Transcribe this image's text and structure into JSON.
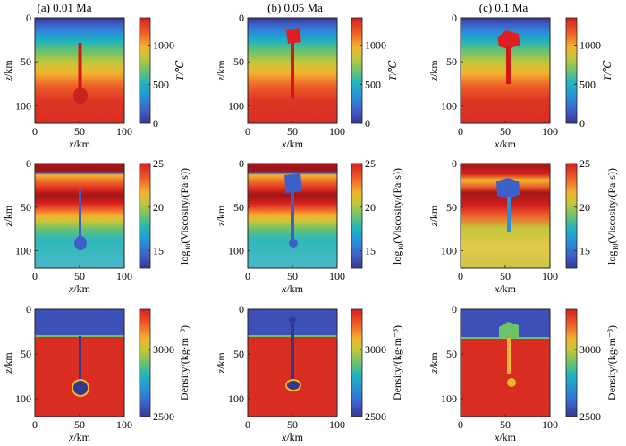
{
  "figure": {
    "columns": [
      {
        "title": "(a) 0.01 Ma"
      },
      {
        "title": "(b) 0.05 Ma"
      },
      {
        "title": "(c) 0.1 Ma"
      }
    ],
    "rows": [
      {
        "colorbar_label": "T/℃",
        "colorbar_ticks": [
          "0",
          "500",
          "1000"
        ],
        "colorbar_range": [
          0,
          1350
        ]
      },
      {
        "colorbar_label_main": "log",
        "colorbar_label_sub": "10",
        "colorbar_label_rest": "(Viscosity/(Pa·s))",
        "colorbar_ticks": [
          "15",
          "20",
          "25"
        ],
        "colorbar_range": [
          13,
          25
        ]
      },
      {
        "colorbar_label": "Density/(kg·m⁻³)",
        "colorbar_ticks": [
          "2500",
          "3000"
        ],
        "colorbar_range": [
          2500,
          3300
        ]
      }
    ],
    "xlabel_italic": "x",
    "xlabel_rest": "/km",
    "ylabel_italic": "z",
    "ylabel_rest": "/km",
    "x_ticks": [
      "0",
      "50",
      "100"
    ],
    "y_ticks": [
      "0",
      "50",
      "100"
    ]
  },
  "chart_data": [
    {
      "type": "heatmap",
      "title": "(a) 0.01 Ma",
      "field": "temperature",
      "unit": "℃",
      "xlim": [
        0,
        100
      ],
      "ylim": [
        0,
        120
      ],
      "clim": [
        0,
        1350
      ],
      "xlabel": "x/km",
      "ylabel": "z/km",
      "conduit_top_z": 30,
      "diapir_center": [
        50,
        90
      ]
    },
    {
      "type": "heatmap",
      "title": "(b) 0.05 Ma",
      "field": "temperature",
      "unit": "℃",
      "xlim": [
        0,
        100
      ],
      "ylim": [
        0,
        120
      ],
      "clim": [
        0,
        1350
      ],
      "xlabel": "x/km",
      "ylabel": "z/km",
      "magma_head_z": 18
    },
    {
      "type": "heatmap",
      "title": "(c) 0.1 Ma",
      "field": "temperature",
      "unit": "℃",
      "xlim": [
        0,
        100
      ],
      "ylim": [
        0,
        120
      ],
      "clim": [
        0,
        1350
      ],
      "xlabel": "x/km",
      "ylabel": "z/km",
      "magma_head_z": 20
    },
    {
      "type": "heatmap",
      "title": "(a) 0.01 Ma",
      "field": "log10 viscosity",
      "unit": "Pa·s",
      "xlim": [
        0,
        100
      ],
      "ylim": [
        0,
        120
      ],
      "clim": [
        13,
        25
      ],
      "xlabel": "x/km",
      "ylabel": "z/km"
    },
    {
      "type": "heatmap",
      "title": "(b) 0.05 Ma",
      "field": "log10 viscosity",
      "unit": "Pa·s",
      "xlim": [
        0,
        100
      ],
      "ylim": [
        0,
        120
      ],
      "clim": [
        13,
        25
      ],
      "xlabel": "x/km",
      "ylabel": "z/km"
    },
    {
      "type": "heatmap",
      "title": "(c) 0.1 Ma",
      "field": "log10 viscosity",
      "unit": "Pa·s",
      "xlim": [
        0,
        100
      ],
      "ylim": [
        0,
        120
      ],
      "clim": [
        13,
        25
      ],
      "xlabel": "x/km",
      "ylabel": "z/km"
    },
    {
      "type": "heatmap",
      "title": "(a) 0.01 Ma",
      "field": "density",
      "unit": "kg·m⁻³",
      "xlim": [
        0,
        100
      ],
      "ylim": [
        0,
        120
      ],
      "clim": [
        2500,
        3300
      ],
      "xlabel": "x/km",
      "ylabel": "z/km",
      "crust_base_z": 30
    },
    {
      "type": "heatmap",
      "title": "(b) 0.05 Ma",
      "field": "density",
      "unit": "kg·m⁻³",
      "xlim": [
        0,
        100
      ],
      "ylim": [
        0,
        120
      ],
      "clim": [
        2500,
        3300
      ],
      "xlabel": "x/km",
      "ylabel": "z/km",
      "crust_base_z": 30
    },
    {
      "type": "heatmap",
      "title": "(c) 0.1 Ma",
      "field": "density",
      "unit": "kg·m⁻³",
      "xlim": [
        0,
        100
      ],
      "ylim": [
        0,
        120
      ],
      "clim": [
        2500,
        3300
      ],
      "xlabel": "x/km",
      "ylabel": "z/km",
      "crust_base_z": 30
    }
  ]
}
